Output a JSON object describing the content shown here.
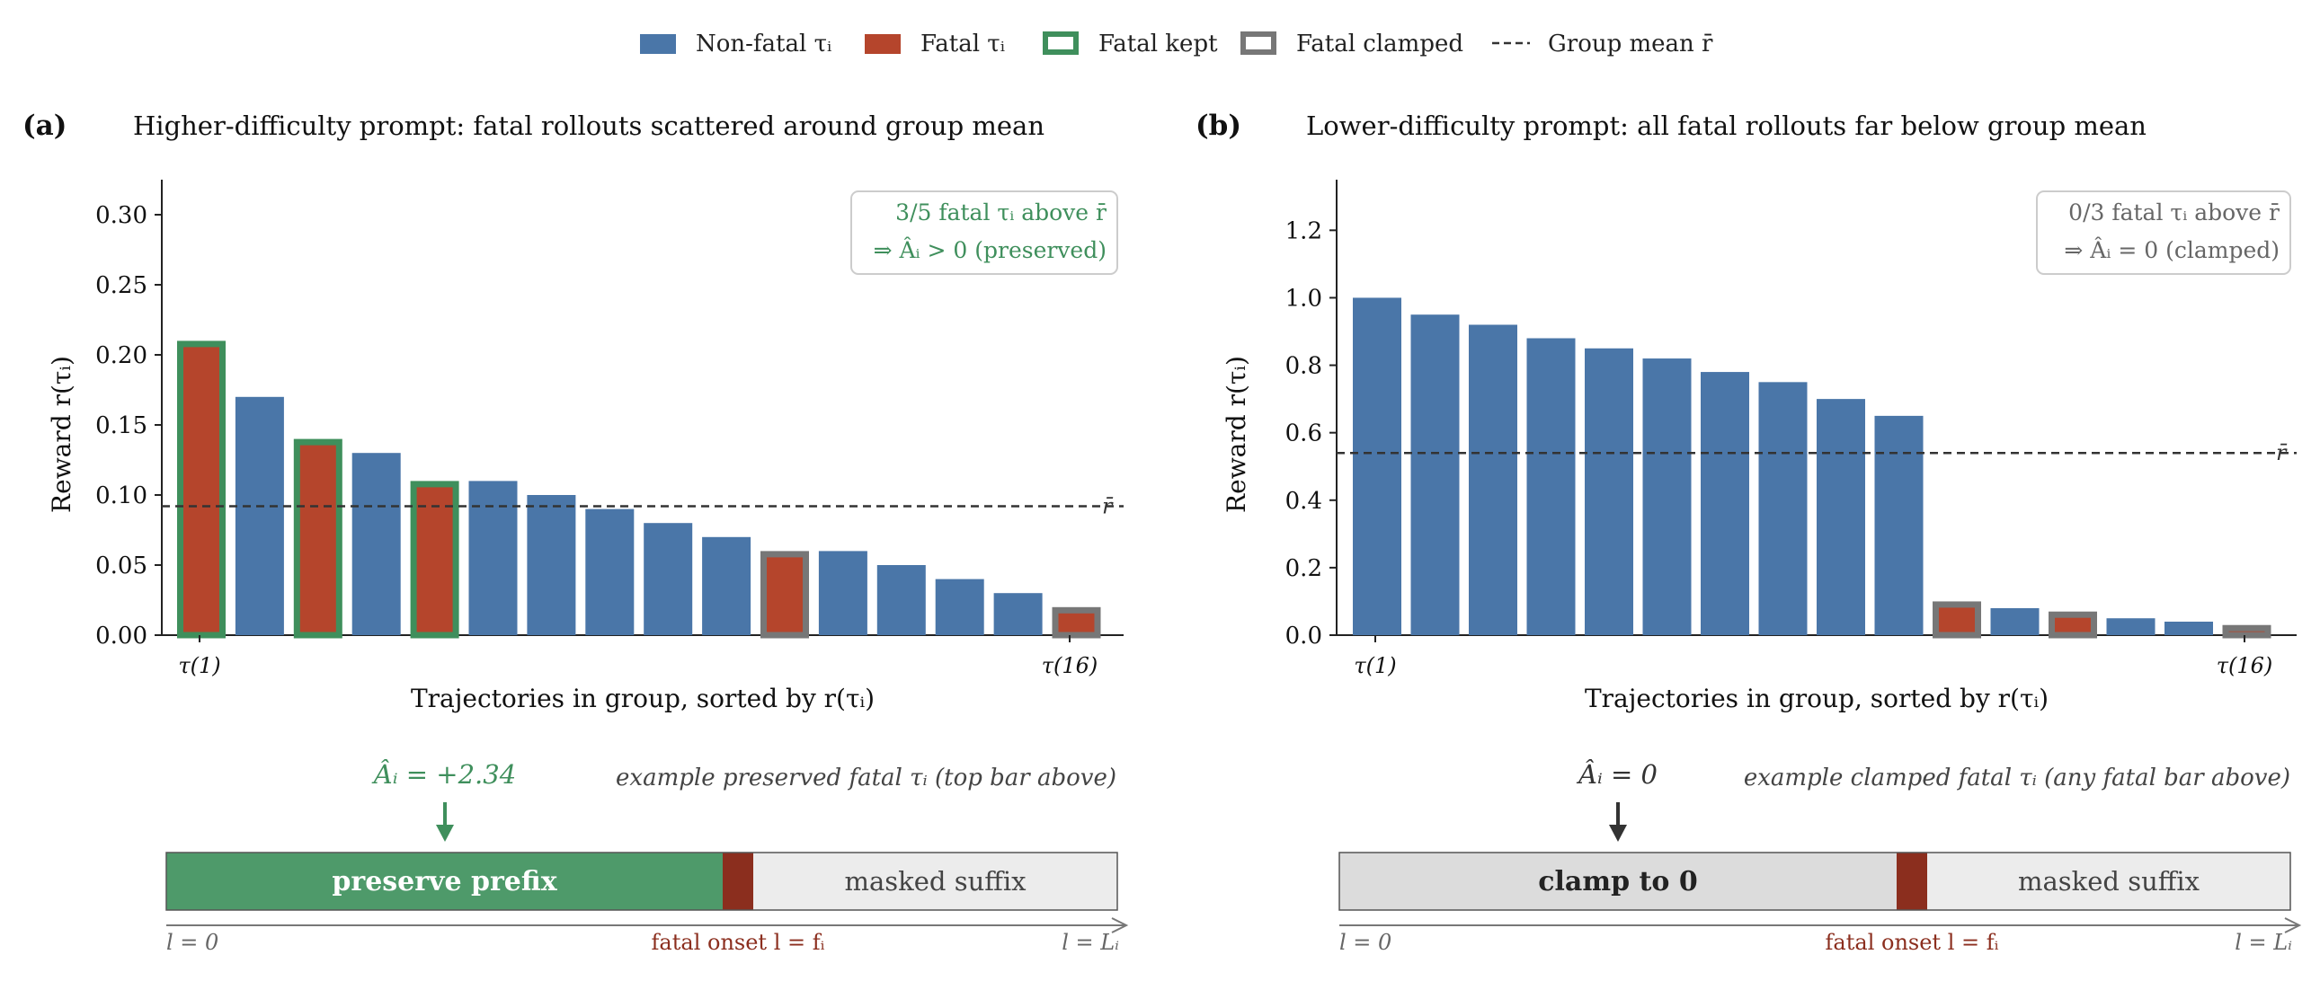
{
  "legend": {
    "items": [
      {
        "key": "nonfatal",
        "label": "Non-fatal τᵢ",
        "kind": "fill",
        "color": "#4a76a8"
      },
      {
        "key": "fatal",
        "label": "Fatal τᵢ",
        "kind": "fill",
        "color": "#b5452c"
      },
      {
        "key": "kept",
        "label": "Fatal kept",
        "kind": "outline",
        "color": "#3f8f5c"
      },
      {
        "key": "clamped",
        "label": "Fatal clamped",
        "kind": "outline",
        "color": "#777777"
      },
      {
        "key": "mean",
        "label": "Group mean r̄",
        "kind": "dash",
        "color": "#333333"
      }
    ]
  },
  "colors": {
    "nonfatal": "#4a76a8",
    "fatal": "#b5452c",
    "kept": "#3f8f5c",
    "clamped": "#777777",
    "mean": "#333333",
    "onset": "#8b2e1e",
    "preserve": "#4e9a6a",
    "clamp_fill": "#dcdcdc",
    "masked": "#ececec"
  },
  "chart_data": [
    {
      "type": "bar",
      "panel_label": "(a)",
      "title": "Higher-difficulty prompt: fatal rollouts scattered around group mean",
      "xlabel": "Trajectories in group, sorted by r(τᵢ)",
      "ylabel": "Reward r(τᵢ)",
      "ylim": [
        0,
        0.325
      ],
      "yticks": [
        0.0,
        0.05,
        0.1,
        0.15,
        0.2,
        0.25,
        0.3
      ],
      "ytick_labels": [
        "0.00",
        "0.05",
        "0.10",
        "0.15",
        "0.20",
        "0.25",
        "0.30"
      ],
      "xtick_labels": [
        "τ(1)",
        "τ(16)"
      ],
      "values": [
        0.21,
        0.17,
        0.14,
        0.13,
        0.11,
        0.11,
        0.1,
        0.09,
        0.08,
        0.07,
        0.06,
        0.06,
        0.05,
        0.04,
        0.03,
        0.02
      ],
      "status": [
        "kept",
        "nonfatal",
        "kept",
        "nonfatal",
        "kept",
        "nonfatal",
        "nonfatal",
        "nonfatal",
        "nonfatal",
        "nonfatal",
        "clamped",
        "nonfatal",
        "nonfatal",
        "nonfatal",
        "nonfatal",
        "clamped"
      ],
      "group_mean": 0.092,
      "mean_label": "r̄",
      "annotation": [
        "3/5 fatal τᵢ above r̄",
        "⇒ Âᵢ > 0 (preserved)"
      ],
      "annotation_color": "#3f8f5c",
      "strip": {
        "advantage_label": "Âᵢ = +2.34",
        "advantage_color": "#3f8f5c",
        "caption": "example preserved fatal τᵢ (top bar above)",
        "prefix_label": "preserve prefix",
        "prefix_style": "preserve",
        "suffix_label": "masked suffix",
        "axis_start": "l = 0",
        "axis_onset": "fatal onset l = fᵢ",
        "axis_end": "l = Lᵢ"
      }
    },
    {
      "type": "bar",
      "panel_label": "(b)",
      "title": "Lower-difficulty prompt: all fatal rollouts far below group mean",
      "xlabel": "Trajectories in group, sorted by r(τᵢ)",
      "ylabel": "Reward r(τᵢ)",
      "ylim": [
        0,
        1.35
      ],
      "yticks": [
        0.0,
        0.2,
        0.4,
        0.6,
        0.8,
        1.0,
        1.2
      ],
      "ytick_labels": [
        "0.0",
        "0.2",
        "0.4",
        "0.6",
        "0.8",
        "1.0",
        "1.2"
      ],
      "xtick_labels": [
        "τ(1)",
        "τ(16)"
      ],
      "values": [
        1.0,
        0.95,
        0.92,
        0.88,
        0.85,
        0.82,
        0.78,
        0.75,
        0.7,
        0.65,
        0.1,
        0.08,
        0.07,
        0.05,
        0.04,
        0.03
      ],
      "status": [
        "nonfatal",
        "nonfatal",
        "nonfatal",
        "nonfatal",
        "nonfatal",
        "nonfatal",
        "nonfatal",
        "nonfatal",
        "nonfatal",
        "nonfatal",
        "clamped",
        "nonfatal",
        "clamped",
        "nonfatal",
        "nonfatal",
        "clamped"
      ],
      "group_mean": 0.54,
      "mean_label": "r̄",
      "annotation": [
        "0/3 fatal τᵢ above r̄",
        "⇒ Âᵢ = 0 (clamped)"
      ],
      "annotation_color": "#666666",
      "strip": {
        "advantage_label": "Âᵢ = 0",
        "advantage_color": "#333333",
        "caption": "example clamped fatal τᵢ (any fatal bar above)",
        "prefix_label": "clamp to 0",
        "prefix_style": "clamp",
        "suffix_label": "masked suffix",
        "axis_start": "l = 0",
        "axis_onset": "fatal onset l = fᵢ",
        "axis_end": "l = Lᵢ"
      }
    }
  ]
}
